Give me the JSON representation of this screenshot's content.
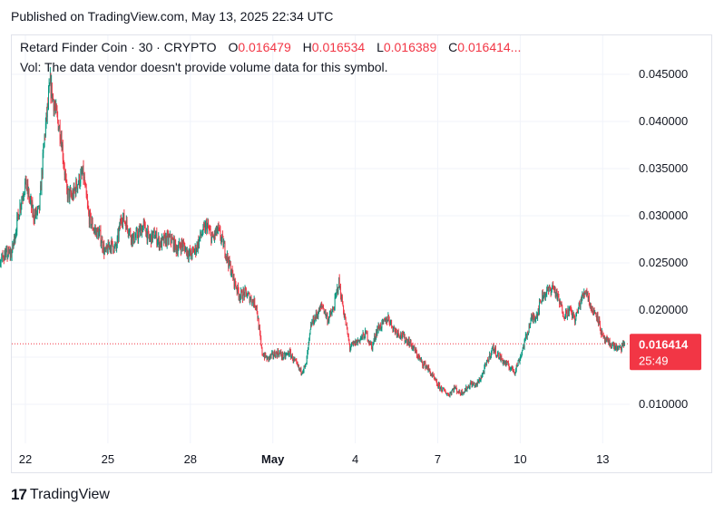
{
  "header": {
    "published": "Published on TradingView.com, May 13, 2025 22:34 UTC"
  },
  "legend": {
    "symbol": "Retard Finder Coin · 30 · CRYPTO",
    "open_label": "O",
    "open": "0.016479",
    "high_label": "H",
    "high": "0.016534",
    "low_label": "L",
    "low": "0.016389",
    "close_label": "C",
    "close": "0.016414...",
    "volume_note": "Vol: The data vendor doesn't provide volume data for this symbol."
  },
  "price_badge": {
    "price": "0.016414",
    "countdown": "25:49",
    "color": "#f23645"
  },
  "footer": {
    "logo_mark": "17",
    "brand": "TradingView"
  },
  "colors": {
    "up": "#089981",
    "down": "#f23645",
    "grid": "#f0f3fa",
    "last_price_line": "#f23645"
  },
  "chart_data": {
    "type": "candlestick",
    "timeframe": "30",
    "y_ticks": [
      "0.045000",
      "0.040000",
      "0.035000",
      "0.030000",
      "0.025000",
      "0.020000",
      "0.010000"
    ],
    "y_tick_values": [
      0.045,
      0.04,
      0.035,
      0.03,
      0.025,
      0.02,
      0.01
    ],
    "x_ticks": [
      "22",
      "25",
      "28",
      "May",
      "4",
      "7",
      "10",
      "13"
    ],
    "x_tick_days": [
      22,
      25,
      28,
      31,
      34,
      37,
      40,
      43
    ],
    "ylim": [
      0.005,
      0.0475
    ],
    "xlim": [
      20.3,
      45.3
    ],
    "last_price": 0.016414,
    "grid": true,
    "close_path": [
      [
        20.3,
        0.0283
      ],
      [
        20.5,
        0.0245
      ],
      [
        20.8,
        0.0232
      ],
      [
        21.2,
        0.0258
      ],
      [
        21.5,
        0.026
      ],
      [
        21.8,
        0.031
      ],
      [
        22.0,
        0.0335
      ],
      [
        22.3,
        0.03
      ],
      [
        22.5,
        0.0305
      ],
      [
        22.7,
        0.0385
      ],
      [
        22.9,
        0.044
      ],
      [
        23.1,
        0.041
      ],
      [
        23.3,
        0.0385
      ],
      [
        23.5,
        0.0325
      ],
      [
        23.7,
        0.032
      ],
      [
        23.9,
        0.0335
      ],
      [
        24.1,
        0.0345
      ],
      [
        24.3,
        0.03
      ],
      [
        24.5,
        0.0285
      ],
      [
        24.7,
        0.028
      ],
      [
        24.9,
        0.026
      ],
      [
        25.1,
        0.027
      ],
      [
        25.3,
        0.0265
      ],
      [
        25.5,
        0.03
      ],
      [
        25.7,
        0.029
      ],
      [
        25.9,
        0.0275
      ],
      [
        26.1,
        0.028
      ],
      [
        26.3,
        0.029
      ],
      [
        26.5,
        0.0275
      ],
      [
        26.7,
        0.028
      ],
      [
        26.9,
        0.027
      ],
      [
        27.1,
        0.0275
      ],
      [
        27.3,
        0.0275
      ],
      [
        27.5,
        0.0265
      ],
      [
        27.7,
        0.027
      ],
      [
        28.0,
        0.0258
      ],
      [
        28.2,
        0.0265
      ],
      [
        28.4,
        0.028
      ],
      [
        28.6,
        0.029
      ],
      [
        28.8,
        0.0275
      ],
      [
        29.0,
        0.0285
      ],
      [
        29.2,
        0.027
      ],
      [
        29.4,
        0.025
      ],
      [
        29.6,
        0.023
      ],
      [
        29.8,
        0.0215
      ],
      [
        30.0,
        0.0218
      ],
      [
        30.2,
        0.0212
      ],
      [
        30.4,
        0.0205
      ],
      [
        30.6,
        0.0155
      ],
      [
        30.8,
        0.0148
      ],
      [
        31.0,
        0.0152
      ],
      [
        31.2,
        0.0155
      ],
      [
        31.4,
        0.015
      ],
      [
        31.6,
        0.0155
      ],
      [
        31.8,
        0.0145
      ],
      [
        32.0,
        0.0135
      ],
      [
        32.2,
        0.014
      ],
      [
        32.4,
        0.0185
      ],
      [
        32.6,
        0.0195
      ],
      [
        32.8,
        0.0205
      ],
      [
        33.0,
        0.019
      ],
      [
        33.2,
        0.02
      ],
      [
        33.4,
        0.023
      ],
      [
        33.6,
        0.0195
      ],
      [
        33.8,
        0.016
      ],
      [
        34.0,
        0.0165
      ],
      [
        34.2,
        0.017
      ],
      [
        34.4,
        0.0175
      ],
      [
        34.6,
        0.016
      ],
      [
        34.8,
        0.018
      ],
      [
        35.0,
        0.0185
      ],
      [
        35.2,
        0.0192
      ],
      [
        35.4,
        0.018
      ],
      [
        35.6,
        0.0175
      ],
      [
        35.8,
        0.017
      ],
      [
        36.0,
        0.0165
      ],
      [
        36.2,
        0.0155
      ],
      [
        36.4,
        0.0145
      ],
      [
        36.6,
        0.014
      ],
      [
        36.8,
        0.013
      ],
      [
        37.0,
        0.012
      ],
      [
        37.2,
        0.0115
      ],
      [
        37.4,
        0.011
      ],
      [
        37.6,
        0.0118
      ],
      [
        37.8,
        0.0112
      ],
      [
        38.0,
        0.0115
      ],
      [
        38.2,
        0.0122
      ],
      [
        38.4,
        0.012
      ],
      [
        38.6,
        0.013
      ],
      [
        38.8,
        0.0145
      ],
      [
        39.0,
        0.016
      ],
      [
        39.2,
        0.0152
      ],
      [
        39.4,
        0.0145
      ],
      [
        39.6,
        0.014
      ],
      [
        39.8,
        0.0135
      ],
      [
        40.0,
        0.015
      ],
      [
        40.2,
        0.017
      ],
      [
        40.4,
        0.019
      ],
      [
        40.6,
        0.0195
      ],
      [
        40.8,
        0.0215
      ],
      [
        41.0,
        0.022
      ],
      [
        41.2,
        0.0225
      ],
      [
        41.4,
        0.021
      ],
      [
        41.6,
        0.0195
      ],
      [
        41.8,
        0.02
      ],
      [
        42.0,
        0.019
      ],
      [
        42.2,
        0.021
      ],
      [
        42.4,
        0.0222
      ],
      [
        42.6,
        0.02
      ],
      [
        42.8,
        0.0195
      ],
      [
        43.0,
        0.017
      ],
      [
        43.2,
        0.0165
      ],
      [
        43.4,
        0.0162
      ],
      [
        43.6,
        0.0158
      ],
      [
        43.8,
        0.0164
      ]
    ]
  }
}
